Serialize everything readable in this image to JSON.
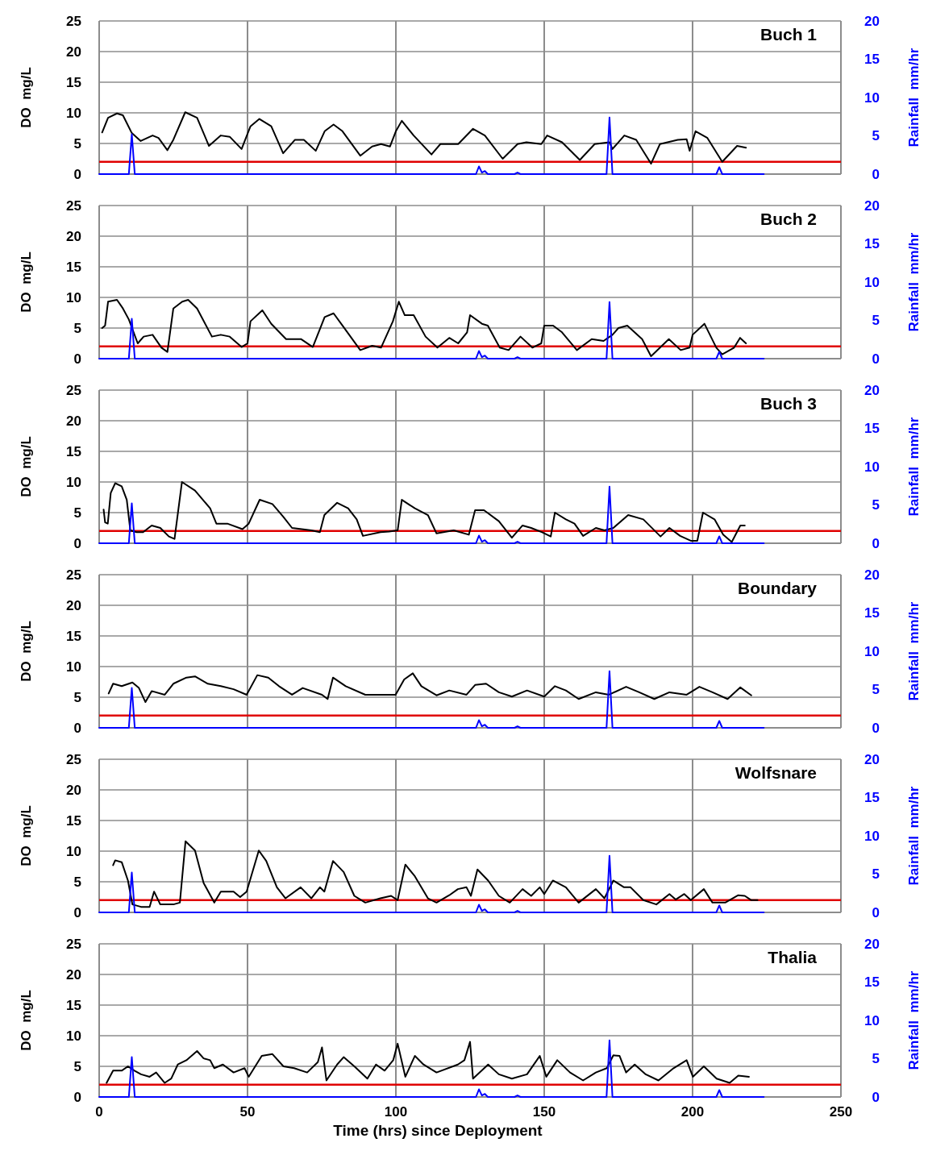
{
  "chart_data": [
    {
      "type": "line",
      "title": "Buch 1",
      "ylabel": "DO  mg/L",
      "y2label": "Rainfall  mm/hr",
      "xlim": [
        0,
        250
      ],
      "xticks": [
        0,
        50,
        100,
        150,
        200,
        250
      ],
      "ylim": [
        0,
        25
      ],
      "yticks": [
        0,
        5,
        10,
        15,
        20,
        25
      ],
      "y2lim": [
        0,
        20
      ],
      "y2ticks": [
        0,
        5,
        10,
        15,
        20
      ],
      "grid": true,
      "tick_labels": "y",
      "line_style": "solid",
      "marker": "none",
      "ref_lines": [
        {
          "axis": "y",
          "value": 2,
          "color": "#e00000"
        }
      ],
      "series": [
        {
          "color": "#000000",
          "x": [
            1,
            3,
            6,
            8,
            11,
            14,
            18,
            20,
            23,
            25,
            29,
            33,
            37,
            41,
            44,
            48,
            51,
            54,
            58,
            62,
            66,
            69,
            73,
            76,
            79,
            82,
            88,
            92,
            95,
            98,
            100,
            102,
            106,
            112,
            115,
            121,
            126,
            130,
            136,
            141,
            144,
            149,
            151,
            156,
            162,
            167,
            172,
            173,
            177,
            181,
            186,
            189,
            195,
            198,
            199,
            201,
            205,
            210,
            215,
            218
          ],
          "values": [
            6.8,
            9.2,
            9.9,
            9.6,
            6.7,
            5.4,
            6.3,
            5.9,
            3.9,
            5.6,
            10.1,
            9.2,
            4.6,
            6.3,
            6.1,
            4.1,
            7.8,
            9.0,
            7.8,
            3.4,
            5.6,
            5.6,
            3.8,
            7.0,
            8.1,
            7.0,
            3.0,
            4.5,
            4.9,
            4.5,
            7.0,
            8.7,
            6.3,
            3.2,
            4.9,
            4.9,
            7.4,
            6.3,
            2.5,
            4.9,
            5.2,
            4.9,
            6.3,
            5.2,
            2.3,
            4.9,
            5.2,
            4.1,
            6.3,
            5.6,
            1.7,
            4.9,
            5.6,
            5.7,
            3.8,
            7.0,
            5.9,
            2.0,
            4.6,
            4.3
          ]
        },
        {
          "color": "#0000ff",
          "axis": "y2",
          "x": [
            0,
            10,
            11,
            12,
            127,
            128,
            129,
            130,
            131,
            140,
            141,
            142,
            171,
            172,
            173,
            208,
            209,
            210,
            224
          ],
          "values": [
            0,
            0,
            5.2,
            0,
            0,
            1.0,
            0.2,
            0.4,
            0,
            0,
            0.2,
            0,
            0,
            7.4,
            0,
            0,
            0.9,
            0,
            0
          ]
        }
      ]
    },
    {
      "type": "line",
      "title": "Buch 2",
      "ylabel": "DO  mg/L",
      "y2label": "Rainfall  mm/hr",
      "xlim": [
        0,
        250
      ],
      "xticks": [
        0,
        50,
        100,
        150,
        200,
        250
      ],
      "ylim": [
        0,
        25
      ],
      "yticks": [
        0,
        5,
        10,
        15,
        20,
        25
      ],
      "y2lim": [
        0,
        20
      ],
      "y2ticks": [
        0,
        5,
        10,
        15,
        20
      ],
      "grid": true,
      "tick_labels": "y",
      "line_style": "solid",
      "marker": "none",
      "ref_lines": [
        {
          "axis": "y",
          "value": 2,
          "color": "#e00000"
        }
      ],
      "series": [
        {
          "color": "#000000",
          "x": [
            1,
            2,
            3,
            6,
            8,
            10,
            13,
            15,
            18,
            21,
            23,
            25,
            28,
            30,
            33,
            38,
            41,
            44,
            48,
            50,
            51,
            55,
            58,
            63,
            68,
            72,
            76,
            79,
            82,
            88,
            92,
            95,
            99,
            101,
            103,
            106,
            110,
            114,
            118,
            121,
            124,
            125,
            129,
            131,
            135,
            138,
            142,
            146,
            149,
            150,
            153,
            156,
            161,
            166,
            170,
            173,
            175,
            178,
            183,
            186,
            192,
            196,
            199,
            200,
            204,
            208,
            210,
            214,
            216,
            218
          ],
          "values": [
            5.0,
            5.4,
            9.3,
            9.6,
            8.2,
            6.4,
            2.5,
            3.6,
            3.9,
            1.8,
            1.1,
            8.2,
            9.3,
            9.6,
            8.2,
            3.6,
            3.9,
            3.6,
            1.9,
            2.5,
            6.1,
            7.9,
            5.7,
            3.2,
            3.2,
            1.9,
            6.8,
            7.4,
            5.4,
            1.4,
            2.1,
            1.8,
            6.1,
            9.3,
            7.1,
            7.1,
            3.6,
            1.8,
            3.4,
            2.5,
            4.3,
            7.1,
            5.7,
            5.4,
            1.8,
            1.4,
            3.6,
            1.8,
            2.5,
            5.4,
            5.4,
            4.3,
            1.4,
            3.2,
            2.9,
            3.9,
            5.0,
            5.4,
            3.2,
            0.4,
            3.2,
            1.4,
            1.8,
            3.9,
            5.7,
            1.8,
            0.7,
            1.8,
            3.4,
            2.5
          ]
        },
        {
          "color": "#0000ff",
          "axis": "y2",
          "x": [
            0,
            10,
            11,
            12,
            127,
            128,
            129,
            130,
            131,
            140,
            141,
            142,
            171,
            172,
            173,
            208,
            209,
            210,
            224
          ],
          "values": [
            0,
            0,
            5.2,
            0,
            0,
            1.0,
            0.2,
            0.4,
            0,
            0,
            0.2,
            0,
            0,
            7.4,
            0,
            0,
            0.9,
            0,
            0
          ]
        }
      ]
    },
    {
      "type": "line",
      "title": "Buch 3",
      "ylabel": "DO  mg/L",
      "y2label": "Rainfall  mm/hr",
      "xlim": [
        0,
        250
      ],
      "xticks": [
        0,
        50,
        100,
        150,
        200,
        250
      ],
      "ylim": [
        0,
        25
      ],
      "yticks": [
        0,
        5,
        10,
        15,
        20,
        25
      ],
      "y2lim": [
        0,
        20
      ],
      "y2ticks": [
        0,
        5,
        10,
        15,
        20
      ],
      "grid": true,
      "tick_labels": "y",
      "line_style": "solid",
      "marker": "none",
      "ref_lines": [
        {
          "axis": "y",
          "value": 2,
          "color": "#e00000"
        }
      ],
      "series": [
        {
          "color": "#000000",
          "x": [
            1.5,
            2.0,
            2.9,
            3.9,
            5.4,
            7.6,
            9.3,
            10.5,
            12.6,
            14.8,
            17.7,
            20.6,
            23.5,
            25.4,
            27.9,
            32.3,
            37.4,
            39.5,
            43.2,
            48.3,
            50.4,
            54.1,
            58.4,
            62.1,
            65,
            71.5,
            74.4,
            75.9,
            80.2,
            83.9,
            86.8,
            88.9,
            94.8,
            97.7,
            100.6,
            102,
            106.4,
            110.8,
            113.7,
            119.5,
            124.6,
            126.7,
            129.7,
            134.7,
            139.1,
            142.7,
            145.6,
            149.3,
            152.2,
            153.6,
            157.3,
            160.2,
            163.1,
            167.4,
            170.3,
            173.3,
            178.3,
            183.4,
            189.2,
            192.2,
            195.8,
            199.4,
            201.6,
            203.5,
            207.4,
            210.3,
            213.2,
            216.1,
            217.6
          ],
          "values": [
            5.5,
            3.4,
            3.2,
            8.2,
            9.8,
            9.3,
            7.1,
            2.1,
            1.8,
            1.8,
            2.9,
            2.5,
            1.1,
            0.7,
            10,
            8.6,
            5.7,
            3.2,
            3.2,
            2.3,
            3.2,
            7.1,
            6.4,
            4.3,
            2.5,
            2.1,
            1.8,
            4.6,
            6.6,
            5.7,
            3.9,
            1.2,
            1.8,
            1.9,
            2.1,
            7.1,
            5.7,
            4.6,
            1.6,
            2.1,
            1.4,
            5.4,
            5.4,
            3.6,
            0.9,
            2.9,
            2.5,
            1.8,
            1.1,
            5.0,
            3.9,
            3.2,
            1.2,
            2.5,
            2.1,
            2.5,
            4.6,
            3.9,
            1.1,
            2.5,
            1.2,
            0.4,
            0.4,
            5.0,
            3.9,
            1.4,
            0.2,
            2.9,
            2.9
          ]
        },
        {
          "color": "#0000ff",
          "axis": "y2",
          "x": [
            0,
            10,
            11,
            12,
            127,
            128,
            129,
            130,
            131,
            140,
            141,
            142,
            171,
            172,
            173,
            208,
            209,
            210,
            224
          ],
          "values": [
            0,
            0,
            5.2,
            0,
            0,
            1.0,
            0.2,
            0.4,
            0,
            0,
            0.2,
            0,
            0,
            7.4,
            0,
            0,
            0.9,
            0,
            0
          ]
        }
      ]
    },
    {
      "type": "line",
      "title": "Boundary",
      "ylabel": "DO  mg/L",
      "y2label": "Rainfall  mm/hr",
      "xlim": [
        0,
        250
      ],
      "xticks": [
        0,
        50,
        100,
        150,
        200,
        250
      ],
      "ylim": [
        0,
        25
      ],
      "yticks": [
        0,
        5,
        10,
        15,
        20,
        25
      ],
      "y2lim": [
        0,
        20
      ],
      "y2ticks": [
        0,
        5,
        10,
        15,
        20
      ],
      "grid": true,
      "tick_labels": "y",
      "line_style": "solid",
      "marker": "none",
      "ref_lines": [
        {
          "axis": "y",
          "value": 2,
          "color": "#e00000"
        }
      ],
      "series": [
        {
          "color": "#000000",
          "x": [
            3.2,
            4.7,
            7.6,
            11.2,
            13.4,
            15.6,
            17.7,
            22.1,
            25,
            29.4,
            32.3,
            36.6,
            41,
            45.3,
            49.7,
            53.3,
            57,
            60.6,
            65,
            68.6,
            75.1,
            77,
            78.8,
            83.1,
            89.7,
            95.5,
            99.9,
            102.8,
            105.7,
            108.6,
            113.7,
            118,
            123.8,
            126.7,
            130.4,
            134.7,
            139.1,
            144.2,
            150,
            153.6,
            157.3,
            161.6,
            167.4,
            171.8,
            177.6,
            182,
            187.1,
            192.2,
            198,
            202.3,
            206.7,
            211.8,
            216.1,
            219.8
          ],
          "values": [
            5.6,
            7.2,
            6.8,
            7.4,
            6.5,
            4.2,
            6.0,
            5.4,
            7.2,
            8.2,
            8.4,
            7.2,
            6.8,
            6.3,
            5.4,
            8.6,
            8.2,
            6.8,
            5.4,
            6.5,
            5.4,
            4.7,
            8.2,
            6.8,
            5.4,
            5.4,
            5.4,
            7.9,
            8.9,
            6.8,
            5.3,
            6.1,
            5.4,
            7.0,
            7.2,
            5.8,
            5.1,
            6.1,
            5.1,
            6.8,
            6.1,
            4.7,
            5.8,
            5.4,
            6.7,
            5.8,
            4.7,
            5.8,
            5.4,
            6.7,
            5.8,
            4.7,
            6.6,
            5.3
          ]
        },
        {
          "color": "#0000ff",
          "axis": "y2",
          "x": [
            0,
            10,
            11,
            12,
            127,
            128,
            129,
            130,
            131,
            140,
            141,
            142,
            171,
            172,
            173,
            208,
            209,
            210,
            224
          ],
          "values": [
            0,
            0,
            5.2,
            0,
            0,
            1.0,
            0.2,
            0.4,
            0,
            0,
            0.2,
            0,
            0,
            7.4,
            0,
            0,
            0.9,
            0,
            0
          ]
        }
      ]
    },
    {
      "type": "line",
      "title": "Wolfsnare",
      "ylabel": "DO  mg/L",
      "y2label": "Rainfall  mm/hr",
      "xlim": [
        0,
        250
      ],
      "xticks": [
        0,
        50,
        100,
        150,
        200,
        250
      ],
      "ylim": [
        0,
        25
      ],
      "yticks": [
        0,
        5,
        10,
        15,
        20,
        25
      ],
      "y2lim": [
        0,
        20
      ],
      "y2ticks": [
        0,
        5,
        10,
        15,
        20
      ],
      "grid": true,
      "tick_labels": "y",
      "line_style": "solid",
      "marker": "none",
      "ref_lines": [
        {
          "axis": "y",
          "value": 2,
          "color": "#e00000"
        }
      ],
      "series": [
        {
          "color": "#000000",
          "x": [
            4.7,
            5.4,
            7.6,
            9.7,
            11.2,
            14.1,
            17,
            18.5,
            20.6,
            25,
            27.2,
            29.1,
            32.3,
            35.2,
            38.8,
            41,
            45.3,
            47.5,
            49.7,
            53.8,
            56.3,
            59.9,
            62.8,
            67.9,
            71.5,
            74.4,
            75.9,
            78.8,
            82.4,
            86,
            89.7,
            94.8,
            98.4,
            100.6,
            103.2,
            106.4,
            110.8,
            113.7,
            118,
            120.9,
            123.8,
            125.3,
            127.5,
            131.1,
            134.7,
            138.4,
            142.7,
            145.6,
            148.5,
            150,
            152.9,
            157.3,
            161.6,
            167.4,
            170.3,
            173.3,
            176.9,
            179.1,
            183.4,
            187.8,
            192.2,
            194.3,
            197.2,
            199.4,
            203.8,
            206.7,
            211,
            215.4,
            217.6,
            219.8,
            221.9
          ],
          "values": [
            7.7,
            8.5,
            8.2,
            5.2,
            1.3,
            0.9,
            0.9,
            3.4,
            1.3,
            1.3,
            1.6,
            11.6,
            10.1,
            4.8,
            1.6,
            3.4,
            3.4,
            2.5,
            3.4,
            10.1,
            8.4,
            4.1,
            2.3,
            4.1,
            2.3,
            4.1,
            3.4,
            8.4,
            6.6,
            2.7,
            1.6,
            2.3,
            2.7,
            2.0,
            7.8,
            5.9,
            2.3,
            1.6,
            2.8,
            3.8,
            4.1,
            2.7,
            7.0,
            5.2,
            2.7,
            1.6,
            3.8,
            2.7,
            4.1,
            3.0,
            5.2,
            4.1,
            1.6,
            3.8,
            2.3,
            5.2,
            4.1,
            4.1,
            2.0,
            1.3,
            3.0,
            2.1,
            3.0,
            2.0,
            3.8,
            1.6,
            1.6,
            2.8,
            2.7,
            2.0,
            2.0
          ]
        },
        {
          "color": "#0000ff",
          "axis": "y2",
          "x": [
            0,
            10,
            11,
            12,
            127,
            128,
            129,
            130,
            131,
            140,
            141,
            142,
            171,
            172,
            173,
            208,
            209,
            210,
            224
          ],
          "values": [
            0,
            0,
            5.2,
            0,
            0,
            1.0,
            0.2,
            0.4,
            0,
            0,
            0.2,
            0,
            0,
            7.4,
            0,
            0,
            0.9,
            0,
            0
          ]
        }
      ]
    },
    {
      "type": "line",
      "title": "Thalia",
      "xlabel": "Time (hrs) since Deployment",
      "ylabel": "DO  mg/L",
      "y2label": "Rainfall  mm/hr",
      "xlim": [
        0,
        250
      ],
      "xticks": [
        0,
        50,
        100,
        150,
        200,
        250
      ],
      "ylim": [
        0,
        25
      ],
      "yticks": [
        0,
        5,
        10,
        15,
        20,
        25
      ],
      "y2lim": [
        0,
        20
      ],
      "y2ticks": [
        0,
        5,
        10,
        15,
        20
      ],
      "grid": true,
      "line_style": "solid",
      "marker": "none",
      "ref_lines": [
        {
          "axis": "y",
          "value": 2,
          "color": "#e00000"
        }
      ],
      "series": [
        {
          "color": "#000000",
          "x": [
            2.5,
            4.7,
            7.6,
            9.7,
            11.9,
            14.1,
            17,
            19.2,
            22.1,
            24.3,
            26.5,
            29.4,
            33,
            35.2,
            37.4,
            38.8,
            41.7,
            45.3,
            49,
            50.4,
            54.8,
            58.4,
            62.1,
            65.7,
            70.1,
            73.7,
            75.1,
            76.6,
            80.2,
            82.4,
            86,
            90.4,
            93.3,
            96.2,
            99.1,
            100.6,
            103.2,
            106.4,
            109.3,
            113.7,
            120.9,
            123.1,
            125,
            126,
            131.1,
            134.7,
            139.1,
            144.2,
            148.5,
            150.7,
            154.4,
            158.7,
            163.1,
            167.4,
            171.1,
            173.3,
            175.4,
            177.6,
            180.5,
            184.2,
            188.5,
            193.6,
            198,
            200.1,
            203.8,
            208.1,
            212.5,
            215.4,
            219
          ],
          "values": [
            2.3,
            4.3,
            4.3,
            5.0,
            4.3,
            3.7,
            3.3,
            4.0,
            2.3,
            3.0,
            5.3,
            6.0,
            7.5,
            6.3,
            6.0,
            4.7,
            5.3,
            4.0,
            4.7,
            3.3,
            6.7,
            7.0,
            5.0,
            4.7,
            4.0,
            5.7,
            8.1,
            2.7,
            5.3,
            6.5,
            5.0,
            3.0,
            5.3,
            4.3,
            6.0,
            8.7,
            3.3,
            6.7,
            5.3,
            4.0,
            5.3,
            6.0,
            9.0,
            3.0,
            5.3,
            3.7,
            3.0,
            3.7,
            6.7,
            3.3,
            6.0,
            4.0,
            2.7,
            4.0,
            4.7,
            6.8,
            6.7,
            4.0,
            5.3,
            3.7,
            2.7,
            4.7,
            6.0,
            3.3,
            5.0,
            3.0,
            2.3,
            3.5,
            3.3
          ]
        },
        {
          "color": "#0000ff",
          "axis": "y2",
          "x": [
            0,
            10,
            11,
            12,
            127,
            128,
            129,
            130,
            131,
            140,
            141,
            142,
            171,
            172,
            173,
            208,
            209,
            210,
            224
          ],
          "values": [
            0,
            0,
            5.2,
            0,
            0,
            1.0,
            0.2,
            0.4,
            0,
            0,
            0.2,
            0,
            0,
            7.4,
            0,
            0,
            0.9,
            0,
            0
          ]
        }
      ]
    }
  ]
}
